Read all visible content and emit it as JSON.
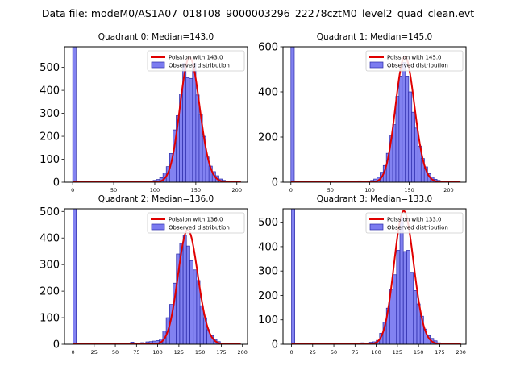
{
  "figure": {
    "suptitle": "Data file: modeM0/AS1A07_018T08_9000003296_22278cztM0_level2_quad_clean.evt"
  },
  "colors": {
    "bar_fill": "#7b7bf0",
    "bar_edge": "#2a2aa8",
    "curve": "#e00000",
    "axis": "#000000"
  },
  "chart_data": [
    {
      "type": "bar",
      "title": "Quadrant 0: Median=143.0",
      "median": 143,
      "ylim": [
        0,
        590
      ],
      "xlim": [
        -10,
        213
      ],
      "xticks": [
        0,
        50,
        100,
        150,
        200
      ],
      "yticks": [
        0,
        100,
        200,
        300,
        400,
        500
      ],
      "bin_width": 4.1,
      "bins": [
        [
          0,
          590
        ],
        [
          78,
          4
        ],
        [
          82,
          5
        ],
        [
          86,
          3
        ],
        [
          90,
          4
        ],
        [
          94,
          4
        ],
        [
          98,
          8
        ],
        [
          102,
          12
        ],
        [
          106,
          20
        ],
        [
          110,
          40
        ],
        [
          114,
          68
        ],
        [
          118,
          125
        ],
        [
          122,
          228
        ],
        [
          126,
          290
        ],
        [
          130,
          385
        ],
        [
          134,
          518
        ],
        [
          138,
          455
        ],
        [
          142,
          452
        ],
        [
          146,
          518
        ],
        [
          150,
          380
        ],
        [
          154,
          295
        ],
        [
          158,
          200
        ],
        [
          162,
          110
        ],
        [
          166,
          70
        ],
        [
          170,
          46
        ],
        [
          174,
          28
        ],
        [
          178,
          14
        ],
        [
          182,
          8
        ],
        [
          186,
          4
        ],
        [
          190,
          3
        ]
      ],
      "curve": {
        "mu": 143.0,
        "x_range": [
          0,
          205
        ]
      },
      "legend": {
        "curve_label": "Poission with 143.0",
        "hist_label": "Observed distribution",
        "loc": "upper right"
      }
    },
    {
      "type": "bar",
      "title": "Quadrant 1: Median=145.0",
      "median": 145,
      "ylim": [
        0,
        600
      ],
      "xlim": [
        -10,
        222
      ],
      "xticks": [
        0,
        50,
        100,
        150,
        200
      ],
      "yticks": [
        0,
        200,
        400,
        600
      ],
      "bin_width": 4.3,
      "bins": [
        [
          0,
          600
        ],
        [
          80,
          4
        ],
        [
          85,
          6
        ],
        [
          89,
          4
        ],
        [
          93,
          5
        ],
        [
          97,
          6
        ],
        [
          101,
          8
        ],
        [
          105,
          14
        ],
        [
          109,
          22
        ],
        [
          113,
          44
        ],
        [
          117,
          74
        ],
        [
          121,
          128
        ],
        [
          125,
          205
        ],
        [
          129,
          255
        ],
        [
          133,
          380
        ],
        [
          137,
          470
        ],
        [
          141,
          530
        ],
        [
          145,
          470
        ],
        [
          149,
          400
        ],
        [
          153,
          310
        ],
        [
          157,
          240
        ],
        [
          161,
          160
        ],
        [
          165,
          105
        ],
        [
          169,
          68
        ],
        [
          173,
          38
        ],
        [
          177,
          22
        ],
        [
          181,
          13
        ],
        [
          185,
          8
        ],
        [
          189,
          4
        ],
        [
          193,
          3
        ]
      ],
      "curve": {
        "mu": 145.0,
        "x_range": [
          0,
          215
        ]
      },
      "legend": {
        "curve_label": "Poission with 145.0",
        "hist_label": "Observed distribution",
        "loc": "upper right"
      }
    },
    {
      "type": "bar",
      "title": "Quadrant 2: Median=136.0",
      "median": 136,
      "ylim": [
        0,
        510
      ],
      "xlim": [
        -10,
        206
      ],
      "xticks": [
        0,
        25,
        50,
        75,
        100,
        125,
        150,
        175,
        200
      ],
      "yticks": [
        0,
        100,
        200,
        300,
        400,
        500
      ],
      "bin_width": 3.9,
      "bins": [
        [
          0,
          510
        ],
        [
          68,
          8
        ],
        [
          74,
          5
        ],
        [
          80,
          6
        ],
        [
          86,
          9
        ],
        [
          90,
          10
        ],
        [
          94,
          12
        ],
        [
          98,
          14
        ],
        [
          102,
          20
        ],
        [
          106,
          50
        ],
        [
          110,
          100
        ],
        [
          114,
          150
        ],
        [
          118,
          230
        ],
        [
          122,
          340
        ],
        [
          126,
          380
        ],
        [
          130,
          410
        ],
        [
          134,
          370
        ],
        [
          138,
          315
        ],
        [
          142,
          280
        ],
        [
          146,
          240
        ],
        [
          150,
          145
        ],
        [
          154,
          100
        ],
        [
          158,
          55
        ],
        [
          162,
          33
        ],
        [
          166,
          18
        ],
        [
          170,
          10
        ],
        [
          174,
          5
        ],
        [
          178,
          3
        ]
      ],
      "curve": {
        "mu": 136.0,
        "x_range": [
          0,
          198
        ]
      },
      "legend": {
        "curve_label": "Poission with 136.0",
        "hist_label": "Observed distribution",
        "loc": "upper right"
      }
    },
    {
      "type": "bar",
      "title": "Quadrant 3: Median=133.0",
      "median": 133,
      "ylim": [
        0,
        555
      ],
      "xlim": [
        -10,
        206
      ],
      "xticks": [
        0,
        25,
        50,
        75,
        100,
        125,
        150,
        175,
        200
      ],
      "yticks": [
        0,
        100,
        200,
        300,
        400,
        500
      ],
      "bin_width": 3.9,
      "bins": [
        [
          0,
          555
        ],
        [
          70,
          4
        ],
        [
          76,
          5
        ],
        [
          82,
          6
        ],
        [
          88,
          4
        ],
        [
          92,
          8
        ],
        [
          96,
          10
        ],
        [
          100,
          16
        ],
        [
          104,
          45
        ],
        [
          108,
          90
        ],
        [
          112,
          148
        ],
        [
          116,
          225
        ],
        [
          120,
          285
        ],
        [
          124,
          385
        ],
        [
          128,
          520
        ],
        [
          132,
          380
        ],
        [
          136,
          385
        ],
        [
          140,
          295
        ],
        [
          144,
          220
        ],
        [
          148,
          165
        ],
        [
          152,
          115
        ],
        [
          156,
          62
        ],
        [
          160,
          35
        ],
        [
          164,
          24
        ],
        [
          168,
          14
        ],
        [
          172,
          6
        ],
        [
          176,
          3
        ]
      ],
      "curve": {
        "mu": 133.0,
        "x_range": [
          0,
          200
        ]
      },
      "legend": {
        "curve_label": "Poission with 133.0",
        "hist_label": "Observed distribution",
        "loc": "upper right"
      }
    }
  ]
}
